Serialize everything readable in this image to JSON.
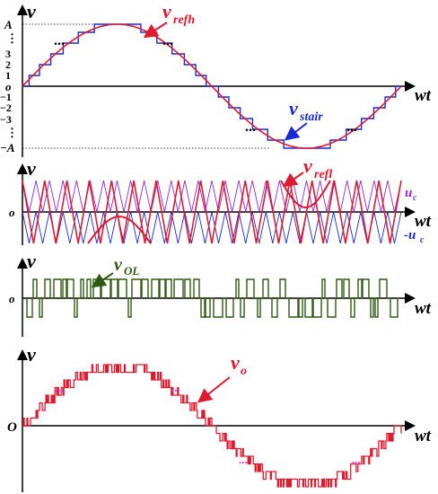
{
  "panels": {
    "p1": {
      "v_label": "v",
      "wt_label": "wt",
      "y_ticks": [
        "A",
        "⋮",
        "3",
        "2",
        "1",
        "o",
        "−1",
        "−2",
        "−3",
        "⋮",
        "−A"
      ],
      "vrefh": "refh",
      "vstair": "stair",
      "v_sym": "v",
      "dots": "..."
    },
    "p2": {
      "v_label": "v",
      "wt_label": "wt",
      "o_label": "o",
      "vrefl": "refl",
      "v_sym": "v",
      "uc": "u",
      "uc_sub": "c",
      "neg_uc": "-u",
      "neg_uc_sub": "c"
    },
    "p3": {
      "v_label": "v",
      "wt_label": "wt",
      "o_label": "o",
      "vOL": "OL",
      "v_sym": "v"
    },
    "p4": {
      "v_label": "v",
      "wt_label": "wt",
      "o_label": "O",
      "vo": "o",
      "v_sym": "v",
      "dots": "..."
    }
  },
  "colors": {
    "axis": "#000000",
    "red": "#e0192e",
    "blue": "#1a2bd6",
    "purple": "#8a2be2",
    "green": "#2f5a12",
    "magenta": "#d63bd6"
  }
}
